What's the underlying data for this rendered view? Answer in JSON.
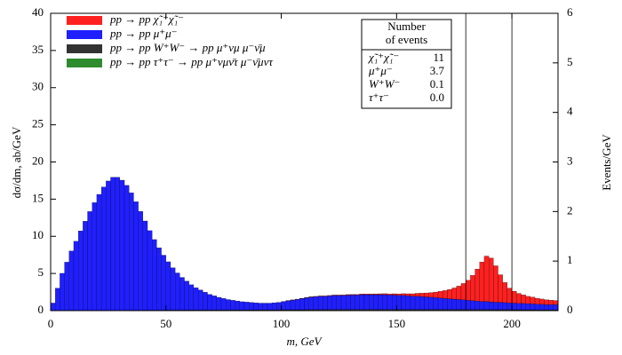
{
  "chart_data": {
    "type": "stacked_histogram",
    "xlabel": "m, GeV",
    "ylabel": "dσ/dm, ab/GeV",
    "y2label": "Events/GeV",
    "xlim": [
      0,
      220
    ],
    "ylim": [
      0,
      40
    ],
    "y2lim": [
      0,
      6
    ],
    "xticks": [
      0,
      50,
      100,
      150,
      200
    ],
    "yticks": [
      0,
      5,
      10,
      15,
      20,
      25,
      30,
      35,
      40
    ],
    "y2ticks": [
      0,
      1,
      2,
      3,
      4,
      5,
      6
    ],
    "vlines": [
      180,
      200
    ],
    "legend": "upper left",
    "bins": [
      0,
      2,
      4,
      6,
      8,
      10,
      12,
      14,
      16,
      18,
      20,
      22,
      24,
      26,
      28,
      30,
      32,
      34,
      36,
      38,
      40,
      42,
      44,
      46,
      48,
      50,
      52,
      54,
      56,
      58,
      60,
      62,
      64,
      66,
      68,
      70,
      72,
      74,
      76,
      78,
      80,
      82,
      84,
      86,
      88,
      90,
      92,
      94,
      96,
      98,
      100,
      102,
      104,
      106,
      108,
      110,
      112,
      114,
      116,
      118,
      120,
      122,
      124,
      126,
      128,
      130,
      132,
      134,
      136,
      138,
      140,
      142,
      144,
      146,
      148,
      150,
      152,
      154,
      156,
      158,
      160,
      162,
      164,
      166,
      168,
      170,
      172,
      174,
      176,
      178,
      180,
      182,
      184,
      186,
      188,
      190,
      192,
      194,
      196,
      198,
      200,
      202,
      204,
      206,
      208,
      210,
      212,
      214,
      216,
      218,
      220
    ],
    "series": [
      {
        "name": "pp → pp χ̃₁⁺χ̃₁⁻",
        "color": "#ff2020",
        "values": [
          0,
          0,
          0,
          0,
          0,
          0,
          0,
          0,
          0,
          0,
          0,
          0,
          0,
          0,
          0,
          0,
          0,
          0,
          0,
          0,
          0,
          0,
          0,
          0,
          0,
          0,
          0,
          0,
          0,
          0,
          0,
          0,
          0,
          0,
          0,
          0,
          0,
          0,
          0,
          0,
          0,
          0,
          0,
          0,
          0,
          0,
          0,
          0,
          0,
          0,
          0.02,
          0.02,
          0.03,
          0.03,
          0.03,
          0.04,
          0.04,
          0.04,
          0.05,
          0.05,
          0.05,
          0.06,
          0.06,
          0.07,
          0.07,
          0.08,
          0.08,
          0.09,
          0.1,
          0.1,
          0.11,
          0.12,
          0.13,
          0.15,
          0.17,
          0.2,
          0.23,
          0.27,
          0.32,
          0.38,
          0.45,
          0.53,
          0.63,
          0.75,
          0.9,
          1.05,
          1.25,
          1.5,
          1.8,
          2.2,
          2.7,
          3.4,
          4.3,
          5.3,
          6.1,
          5.9,
          4.9,
          3.7,
          2.7,
          2.0,
          1.6,
          1.35,
          1.15,
          1.0,
          0.9,
          0.8,
          0.7,
          0.65,
          0.6,
          0.55
        ]
      },
      {
        "name": "pp → pp μ⁺μ⁻",
        "color": "#1f1fff",
        "values": [
          1,
          3,
          5,
          6.5,
          8,
          9.3,
          10.7,
          12,
          13.3,
          14.5,
          15.6,
          16.6,
          17.4,
          17.9,
          17.9,
          17.5,
          16.8,
          15.8,
          14.6,
          13.3,
          12,
          10.7,
          9.5,
          8.4,
          7.4,
          6.5,
          5.7,
          5.0,
          4.4,
          3.9,
          3.4,
          3.0,
          2.7,
          2.4,
          2.1,
          1.9,
          1.7,
          1.55,
          1.4,
          1.3,
          1.2,
          1.1,
          1.05,
          1.0,
          0.95,
          0.9,
          0.9,
          0.9,
          0.95,
          1.0,
          1.1,
          1.2,
          1.3,
          1.4,
          1.5,
          1.6,
          1.7,
          1.75,
          1.8,
          1.8,
          1.85,
          1.9,
          1.9,
          1.9,
          1.95,
          1.95,
          1.95,
          2.0,
          2.0,
          2.0,
          2.0,
          2.0,
          2.0,
          1.95,
          1.95,
          1.9,
          1.9,
          1.85,
          1.8,
          1.8,
          1.75,
          1.7,
          1.65,
          1.6,
          1.55,
          1.5,
          1.45,
          1.4,
          1.35,
          1.3,
          1.25,
          1.2,
          1.15,
          1.1,
          1.1,
          1.05,
          1.0,
          1.0,
          0.95,
          0.9,
          0.9,
          0.85,
          0.85,
          0.8,
          0.8,
          0.75,
          0.75,
          0.7,
          0.7,
          0.7
        ]
      },
      {
        "name": "pp → pp W⁺W⁻ → pp μ⁺νμ μ⁻ν̄μ",
        "color": "#333333",
        "values": [
          0.02,
          0.02,
          0.02,
          0.02,
          0.02,
          0.03,
          0.03,
          0.03,
          0.03,
          0.03,
          0.04,
          0.04,
          0.04,
          0.04,
          0.04,
          0.05,
          0.05,
          0.05,
          0.05,
          0.05,
          0.06,
          0.06,
          0.06,
          0.06,
          0.06,
          0.07,
          0.07,
          0.07,
          0.07,
          0.07,
          0.08,
          0.08,
          0.08,
          0.08,
          0.08,
          0.09,
          0.09,
          0.09,
          0.09,
          0.09,
          0.1,
          0.1,
          0.1,
          0.1,
          0.1,
          0.11,
          0.11,
          0.11,
          0.11,
          0.11,
          0.12,
          0.12,
          0.12,
          0.12,
          0.12,
          0.13,
          0.13,
          0.13,
          0.13,
          0.13,
          0.14,
          0.14,
          0.14,
          0.14,
          0.14,
          0.15,
          0.15,
          0.15,
          0.15,
          0.15,
          0.15,
          0.15,
          0.15,
          0.15,
          0.15,
          0.15,
          0.15,
          0.15,
          0.15,
          0.15,
          0.15,
          0.15,
          0.15,
          0.15,
          0.15,
          0.15,
          0.15,
          0.15,
          0.15,
          0.15,
          0.14,
          0.14,
          0.14,
          0.14,
          0.14,
          0.13,
          0.13,
          0.13,
          0.13,
          0.13,
          0.12,
          0.12,
          0.12,
          0.12,
          0.12,
          0.11,
          0.11,
          0.11,
          0.11,
          0.11
        ]
      },
      {
        "name": "pp → pp τ⁺τ⁻ → pp μ⁺νμν̄τ μ⁻ν̄μντ",
        "color": "#2e8b2e",
        "values": [
          0,
          0,
          0,
          0,
          0,
          0,
          0,
          0,
          0,
          0,
          0,
          0,
          0,
          0,
          0,
          0,
          0,
          0,
          0,
          0,
          0,
          0,
          0,
          0,
          0,
          0,
          0,
          0,
          0,
          0,
          0,
          0,
          0,
          0,
          0,
          0,
          0,
          0,
          0,
          0,
          0,
          0,
          0,
          0,
          0,
          0,
          0,
          0,
          0,
          0,
          0,
          0,
          0,
          0,
          0,
          0,
          0,
          0,
          0,
          0,
          0,
          0,
          0,
          0,
          0,
          0,
          0,
          0,
          0,
          0,
          0,
          0,
          0,
          0,
          0,
          0,
          0,
          0,
          0,
          0,
          0,
          0,
          0,
          0,
          0,
          0,
          0,
          0,
          0,
          0,
          0,
          0,
          0,
          0,
          0,
          0,
          0,
          0,
          0,
          0,
          0,
          0,
          0,
          0,
          0,
          0,
          0,
          0,
          0,
          0
        ]
      }
    ],
    "table": {
      "header": [
        "Number",
        "of events"
      ],
      "rows": [
        [
          "χ̃₁⁺χ̃₁⁻",
          "11"
        ],
        [
          "μ⁺μ⁻",
          "3.7"
        ],
        [
          "W⁺W⁻",
          "0.1"
        ],
        [
          "τ⁺τ⁻",
          "0.0"
        ]
      ]
    }
  }
}
